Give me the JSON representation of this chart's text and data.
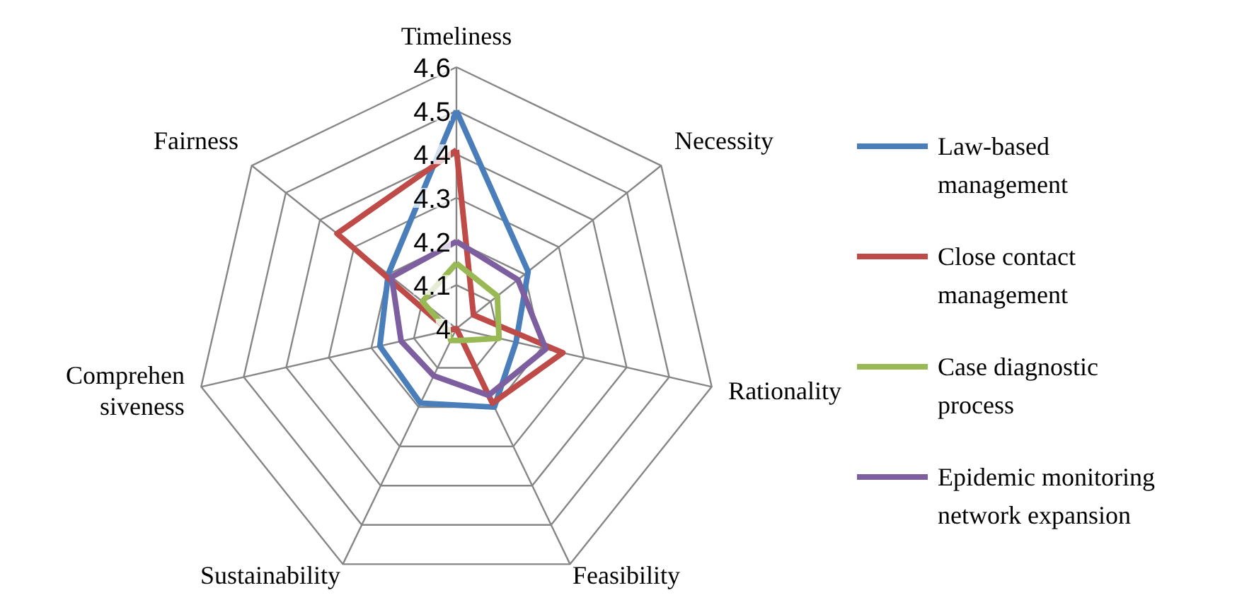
{
  "chart_data": {
    "type": "radar",
    "categories": [
      "Timeliness",
      "Necessity",
      "Rationality",
      "Feasibility",
      "Sustainability",
      "Comprehensiveness",
      "Fairness"
    ],
    "ylim": [
      4,
      4.6
    ],
    "yticks": [
      4,
      4.1,
      4.2,
      4.3,
      4.4,
      4.5,
      4.6
    ],
    "grid": true,
    "legend": "right",
    "series": [
      {
        "name": "Law-based management",
        "color": "#4a7ebb",
        "values": [
          4.5,
          4.21,
          4.14,
          4.2,
          4.19,
          4.18,
          4.2
        ]
      },
      {
        "name": "Close contact management",
        "color": "#be4b48",
        "values": [
          4.41,
          4.05,
          4.25,
          4.19,
          4.0,
          4.02,
          4.35
        ]
      },
      {
        "name": "Case diagnostic process",
        "color": "#98b954",
        "values": [
          4.15,
          4.12,
          4.1,
          4.03,
          4.03,
          4.02,
          4.1
        ]
      },
      {
        "name": "Epidemic monitoring network expansion",
        "color": "#7d5fa0",
        "values": [
          4.2,
          4.18,
          4.21,
          4.17,
          4.12,
          4.13,
          4.19
        ]
      }
    ]
  }
}
